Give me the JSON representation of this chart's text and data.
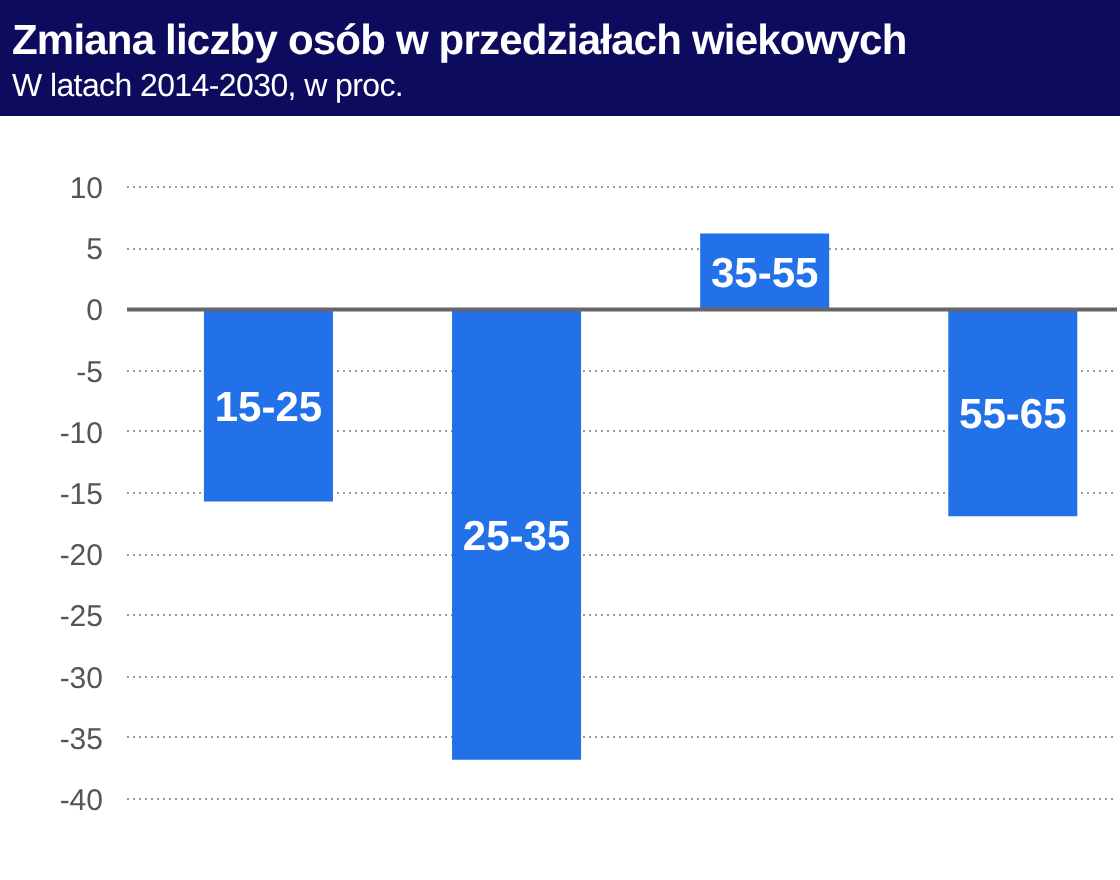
{
  "chart_data": {
    "type": "bar",
    "title": "Zmiana liczby osób w przedziałach wiekowych",
    "subtitle": "W latach 2014-2030, w proc.",
    "categories": [
      "15-25",
      "25-35",
      "35-55",
      "55-65"
    ],
    "values": [
      -15.7,
      -36.8,
      6.2,
      -16.9
    ],
    "color": "#2271e8",
    "ylim": [
      -40,
      10
    ],
    "yticks": [
      10,
      5,
      0,
      -5,
      -10,
      -15,
      -20,
      -25,
      -30,
      -35,
      -40
    ],
    "grid": "y",
    "tick_labels": "y"
  }
}
